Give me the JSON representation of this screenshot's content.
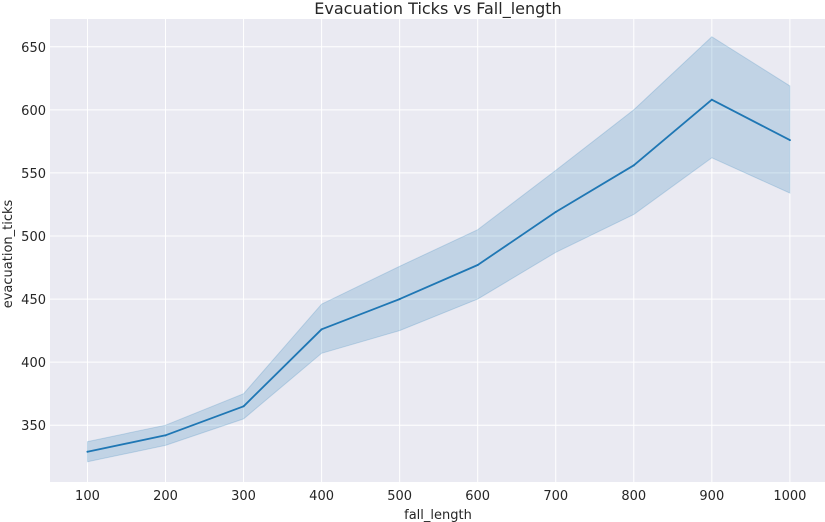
{
  "chart_data": {
    "type": "line",
    "title": "Evacuation Ticks vs Fall_length",
    "xlabel": "fall_length",
    "ylabel": "evacuation_ticks",
    "x": [
      100,
      200,
      300,
      400,
      500,
      600,
      700,
      800,
      900,
      1000
    ],
    "series": [
      {
        "name": "evacuation_ticks",
        "values": [
          329,
          342,
          365,
          426,
          450,
          477,
          519,
          556,
          608,
          576
        ],
        "ci_upper": [
          337,
          350,
          375,
          446,
          476,
          505,
          552,
          600,
          658,
          619
        ],
        "ci_lower": [
          321,
          334,
          355,
          407,
          425,
          450,
          487,
          517,
          562,
          534
        ]
      }
    ],
    "xticks": [
      100,
      200,
      300,
      400,
      500,
      600,
      700,
      800,
      900,
      1000
    ],
    "yticks": [
      350,
      400,
      450,
      500,
      550,
      600,
      650
    ],
    "xlim": [
      52,
      1045
    ],
    "ylim": [
      305,
      672
    ],
    "grid": true,
    "colors": {
      "background": "#eaeaf2",
      "grid": "#ffffff",
      "line": "#1f77b4",
      "band": "#1f77b4"
    }
  }
}
